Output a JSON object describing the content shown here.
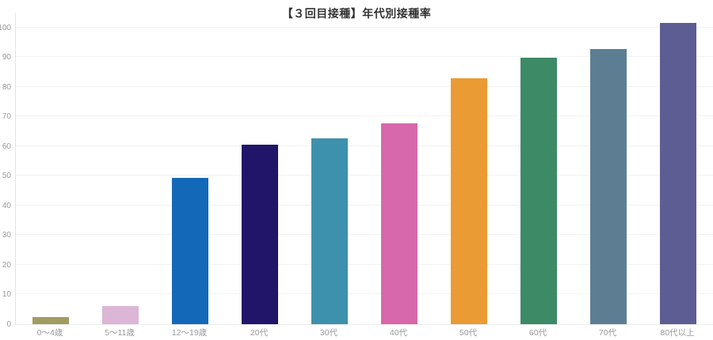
{
  "chart_data": {
    "type": "bar",
    "title": "【３回目接種】年代別接種率",
    "categories": [
      "0〜4歳",
      "5〜11歳",
      "12〜19歳",
      "20代",
      "30代",
      "40代",
      "50代",
      "60代",
      "70代",
      "80代以上"
    ],
    "values": [
      2.3,
      6.2,
      49.2,
      60.6,
      62.5,
      67.6,
      82.8,
      89.7,
      92.7,
      101.5
    ],
    "bar_colors": [
      "#a29b62",
      "#dcb6d6",
      "#1368b8",
      "#201569",
      "#3e91ac",
      "#d668ab",
      "#ea9b33",
      "#3d8a66",
      "#5d7e92",
      "#5e5d93"
    ],
    "xlabel": "",
    "ylabel": "",
    "yticks": [
      0,
      10,
      20,
      30,
      40,
      50,
      60,
      70,
      80,
      90,
      100
    ],
    "ylim": [
      0,
      105
    ],
    "grid": "horizontal",
    "legend": "none",
    "colors": {
      "background": "#ffffff",
      "title_text": "#333333",
      "tick_label_text": "#9b9b9b",
      "gridline": "#f2f2f2",
      "axis_line": "#e3e3e3"
    }
  }
}
